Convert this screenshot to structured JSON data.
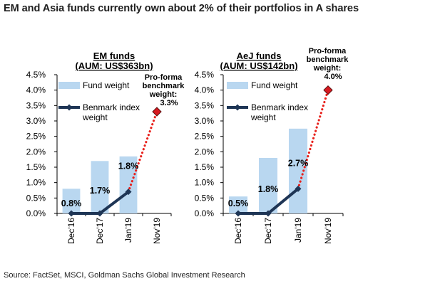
{
  "page_title": "EM and Asia funds currently own about 2% of their portfolios in A shares",
  "source": "Source: FactSet, MSCI, Goldman Sachs Global Investment Research",
  "colors": {
    "bar": "#b9d7f0",
    "line": "#1e3555",
    "dots": "#e8211c",
    "marker_red": "#d71920"
  },
  "chart_data": [
    {
      "type": "bar",
      "title": "EM funds",
      "subtitle": "(AUM: US$363bn)",
      "categories": [
        "Dec'16",
        "Dec'17",
        "Jan'19",
        "Nov'19"
      ],
      "y_ticks": [
        "0.0%",
        "0.5%",
        "1.0%",
        "1.5%",
        "2.0%",
        "2.5%",
        "3.0%",
        "3.5%",
        "4.0%",
        "4.5%"
      ],
      "ylim": [
        0,
        4.5
      ],
      "grid": false,
      "series": [
        {
          "name": "Fund weight",
          "kind": "bar",
          "values": [
            0.8,
            1.7,
            1.85,
            null
          ]
        },
        {
          "name": "Benmark index weight",
          "kind": "line",
          "values": [
            0.0,
            0.0,
            0.7,
            null
          ]
        }
      ],
      "projection": {
        "from_index": 2,
        "to_index": 3,
        "from_value": 0.7,
        "to_value": 3.3
      },
      "data_labels": [
        "0.8%",
        "1.7%",
        "1.8%"
      ],
      "annotation": {
        "lines": [
          "Pro-forma",
          "benchmark",
          "weight:"
        ],
        "value": "3.3%"
      },
      "legend_position": "top-left"
    },
    {
      "type": "bar",
      "title": "AeJ funds",
      "subtitle": "(AUM: US$142bn)",
      "categories": [
        "Dec'16",
        "Dec'17",
        "Jan'19",
        "Nov'19"
      ],
      "y_ticks": [
        "0.0%",
        "0.5%",
        "1.0%",
        "1.5%",
        "2.0%",
        "2.5%",
        "3.0%",
        "3.5%",
        "4.0%",
        "4.5%"
      ],
      "ylim": [
        0,
        4.5
      ],
      "grid": false,
      "series": [
        {
          "name": "Fund weight",
          "kind": "bar",
          "values": [
            0.55,
            1.8,
            2.75,
            null
          ]
        },
        {
          "name": "Benmark index weight",
          "kind": "line",
          "values": [
            0.0,
            0.0,
            0.8,
            null
          ]
        }
      ],
      "projection": {
        "from_index": 2,
        "to_index": 3,
        "from_value": 0.8,
        "to_value": 4.0
      },
      "data_labels": [
        "0.5%",
        "1.8%",
        "2.7%"
      ],
      "annotation": {
        "lines": [
          "Pro-forma",
          "benchmark",
          "weight:"
        ],
        "value": "4.0%"
      },
      "legend_position": "top-left"
    }
  ]
}
